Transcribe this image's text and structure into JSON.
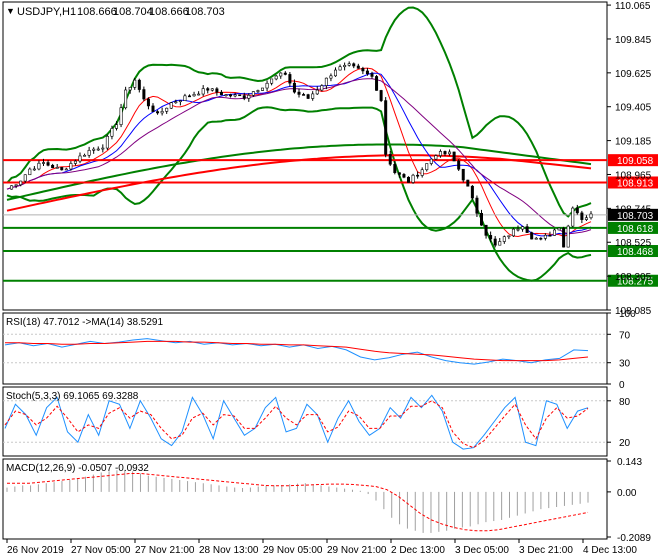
{
  "header": {
    "title": "USDJPY,H1",
    "ohlc": [
      "108.666",
      "108.704",
      "108.666",
      "108.703"
    ]
  },
  "colors": {
    "grid": "#c8c8c8",
    "axis": "#000000",
    "bollinger": "#008000",
    "ma_fast": "#ff0000",
    "ma_mid": "#0000ff",
    "ma_slow": "#800080",
    "sma200": "#ff0000",
    "sma100": "#008000",
    "hline_red": "#ff0000",
    "hline_green": "#008000",
    "rsi": "#1e90ff",
    "rsi_ma": "#ff0000",
    "stoch_main": "#1e90ff",
    "stoch_signal": "#ff0000",
    "macd_hist": "#a0a0a0",
    "macd_signal": "#ff0000",
    "current_price_bg": "#000000"
  },
  "chart_data": [
    {
      "type": "candlestick",
      "symbol": "USDJPY",
      "timeframe": "H1",
      "y_ticks": [
        "110.065",
        "109.845",
        "109.625",
        "109.405",
        "109.185",
        "108.965",
        "108.745",
        "108.525",
        "108.305",
        "108.085"
      ],
      "ylim": [
        108.085,
        110.085
      ],
      "current_price": "108.703",
      "levels": [
        {
          "label": "109.058",
          "value": 109.058,
          "color": "red"
        },
        {
          "label": "108.913",
          "value": 108.913,
          "color": "red"
        },
        {
          "label": "108.618",
          "value": 108.618,
          "color": "green"
        },
        {
          "label": "108.468",
          "value": 108.468,
          "color": "green"
        },
        {
          "label": "108.275",
          "value": 108.275,
          "color": "green"
        }
      ],
      "x_labels": [
        "26 Nov 2019",
        "27 Nov 05:00",
        "27 Nov 21:00",
        "28 Nov 13:00",
        "29 Nov 05:00",
        "29 Nov 21:00",
        "2 Dec 13:00",
        "3 Dec 05:00",
        "3 Dec 21:00",
        "4 Dec 13:00"
      ],
      "close_path": [
        [
          0,
          108.87
        ],
        [
          3,
          108.93
        ],
        [
          5,
          109.0
        ],
        [
          8,
          109.04
        ],
        [
          12,
          108.99
        ],
        [
          15,
          109.06
        ],
        [
          18,
          109.12
        ],
        [
          21,
          109.15
        ],
        [
          24,
          109.3
        ],
        [
          26,
          109.5
        ],
        [
          28,
          109.58
        ],
        [
          30,
          109.45
        ],
        [
          33,
          109.35
        ],
        [
          36,
          109.43
        ],
        [
          40,
          109.48
        ],
        [
          44,
          109.52
        ],
        [
          48,
          109.48
        ],
        [
          52,
          109.47
        ],
        [
          56,
          109.54
        ],
        [
          59,
          109.6
        ],
        [
          61,
          109.62
        ],
        [
          63,
          109.5
        ],
        [
          66,
          109.46
        ],
        [
          69,
          109.55
        ],
        [
          72,
          109.65
        ],
        [
          75,
          109.67
        ],
        [
          78,
          109.63
        ],
        [
          80,
          109.6
        ],
        [
          82,
          109.45
        ],
        [
          83,
          109.1
        ],
        [
          85,
          108.98
        ],
        [
          88,
          108.92
        ],
        [
          91,
          109.0
        ],
        [
          94,
          109.1
        ],
        [
          97,
          109.1
        ],
        [
          99,
          109.0
        ],
        [
          101,
          108.88
        ],
        [
          103,
          108.72
        ],
        [
          105,
          108.58
        ],
        [
          107,
          108.5
        ],
        [
          109,
          108.55
        ],
        [
          111,
          108.6
        ],
        [
          113,
          108.64
        ],
        [
          115,
          108.56
        ],
        [
          117,
          108.54
        ],
        [
          119,
          108.58
        ],
        [
          121,
          108.63
        ],
        [
          122,
          108.5
        ],
        [
          124,
          108.76
        ],
        [
          126,
          108.68
        ],
        [
          128,
          108.7
        ]
      ],
      "total_bars": 128
    },
    {
      "type": "line",
      "name": "RSI",
      "legend": "RSI(18) 47.7012 ->MA(14) 38.5291",
      "y_ticks": [
        "100",
        "70",
        "30",
        "0"
      ],
      "ylim": [
        0,
        100
      ],
      "levels": [
        70,
        30
      ],
      "series": [
        {
          "name": "RSI(18)",
          "values": [
            55,
            58,
            54,
            57,
            52,
            56,
            60,
            57,
            59,
            62,
            64,
            61,
            58,
            60,
            56,
            58,
            55,
            57,
            54,
            56,
            52,
            55,
            50,
            53,
            48,
            38,
            34,
            37,
            42,
            45,
            38,
            33,
            30,
            28,
            31,
            35,
            33,
            30,
            34,
            36,
            48,
            47
          ]
        },
        {
          "name": "MA(14)",
          "values": [
            58,
            58,
            57,
            57,
            56,
            56,
            57,
            57,
            58,
            59,
            60,
            60,
            60,
            59,
            59,
            58,
            57,
            57,
            56,
            56,
            55,
            55,
            54,
            53,
            52,
            49,
            46,
            44,
            43,
            42,
            41,
            39,
            37,
            35,
            34,
            33,
            33,
            33,
            33,
            34,
            36,
            38
          ]
        }
      ]
    },
    {
      "type": "line",
      "name": "Stochastic",
      "legend": "Stoch(5,3,3) 69.1065 69.3288",
      "y_ticks": [
        "80",
        "20"
      ],
      "ylim": [
        0,
        100
      ],
      "levels": [
        80,
        20
      ],
      "series": [
        {
          "name": "Stoch %K",
          "values": [
            40,
            75,
            60,
            30,
            70,
            85,
            35,
            20,
            60,
            30,
            80,
            75,
            40,
            80,
            55,
            25,
            15,
            35,
            85,
            60,
            25,
            80,
            55,
            30,
            40,
            70,
            85,
            35,
            40,
            75,
            60,
            20,
            55,
            80,
            50,
            30,
            40,
            70,
            55,
            85,
            70,
            88,
            65,
            20,
            10,
            12,
            30,
            50,
            70,
            85,
            20,
            15,
            80,
            75,
            40,
            65,
            70
          ]
        },
        {
          "name": "Stoch %D",
          "values": [
            45,
            65,
            60,
            45,
            55,
            72,
            55,
            35,
            45,
            40,
            62,
            70,
            55,
            65,
            60,
            40,
            25,
            30,
            55,
            62,
            45,
            60,
            58,
            40,
            40,
            55,
            72,
            55,
            45,
            60,
            60,
            35,
            42,
            65,
            58,
            40,
            40,
            58,
            58,
            72,
            72,
            80,
            70,
            35,
            18,
            12,
            22,
            40,
            58,
            75,
            45,
            25,
            55,
            70,
            55,
            58,
            69
          ]
        }
      ]
    },
    {
      "type": "bar",
      "name": "MACD",
      "legend": "MACD(12,26,9) -0.0507 -0.0932",
      "y_ticks": [
        "0.143",
        "0.00",
        "-0.2089"
      ],
      "ylim": [
        -0.2089,
        0.143
      ],
      "values": [
        0.02,
        0.025,
        0.03,
        0.03,
        0.035,
        0.04,
        0.045,
        0.05,
        0.055,
        0.06,
        0.07,
        0.08,
        0.09,
        0.095,
        0.1,
        0.1,
        0.095,
        0.085,
        0.075,
        0.07,
        0.065,
        0.06,
        0.055,
        0.05,
        0.045,
        0.04,
        0.035,
        0.03,
        0.025,
        0.02,
        0.018,
        0.02,
        0.025,
        0.028,
        0.03,
        0.032,
        0.035,
        0.038,
        0.04,
        0.035,
        0.03,
        0.025,
        0.02,
        0.015,
        0.01,
        0.005,
        -0.01,
        -0.04,
        -0.08,
        -0.12,
        -0.15,
        -0.17,
        -0.18,
        -0.19,
        -0.19,
        -0.185,
        -0.18,
        -0.17,
        -0.165,
        -0.16,
        -0.15,
        -0.14,
        -0.135,
        -0.13,
        -0.12,
        -0.11,
        -0.1,
        -0.09,
        -0.08,
        -0.075,
        -0.07,
        -0.065,
        -0.06,
        -0.055,
        -0.05
      ],
      "signal": [
        0.04,
        0.04,
        0.04,
        0.045,
        0.05,
        0.055,
        0.06,
        0.065,
        0.07,
        0.075,
        0.08,
        0.085,
        0.085,
        0.08,
        0.075,
        0.07,
        0.065,
        0.06,
        0.055,
        0.05,
        0.045,
        0.04,
        0.035,
        0.03,
        0.028,
        0.028,
        0.03,
        0.032,
        0.034,
        0.036,
        0.036,
        0.034,
        0.03,
        0.025,
        0.01,
        -0.02,
        -0.06,
        -0.1,
        -0.13,
        -0.15,
        -0.165,
        -0.175,
        -0.18,
        -0.18,
        -0.175,
        -0.165,
        -0.155,
        -0.145,
        -0.135,
        -0.125,
        -0.115,
        -0.105,
        -0.095
      ]
    }
  ]
}
